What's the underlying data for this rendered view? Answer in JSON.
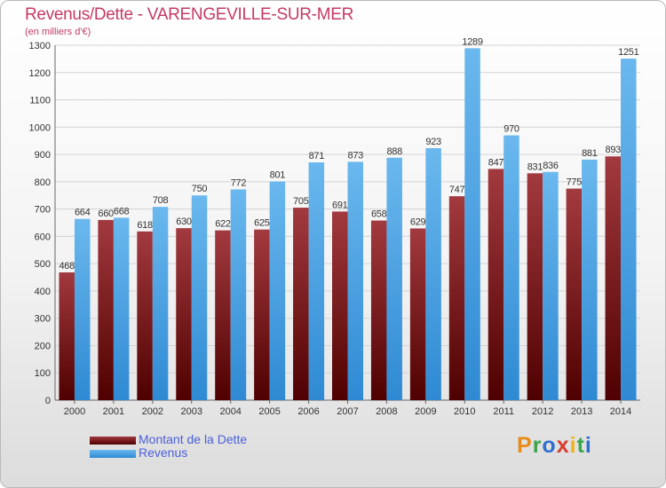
{
  "title": "Revenus/Dette - VARENGEVILLE-SUR-MER",
  "subtitle": "(en milliers d'€)",
  "colors": {
    "title": "#c63b63",
    "dette_light": "#a23a3f",
    "dette_dark": "#4f0000",
    "revenus_light": "#6ab8ee",
    "revenus_dark": "#2f8ad3",
    "legend_text": "#4a5fd9"
  },
  "logo": {
    "letters": [
      {
        "ch": "P",
        "color": "#e88b1a"
      },
      {
        "ch": "r",
        "color": "#3aa64a"
      },
      {
        "ch": "o",
        "color": "#2f6fd1"
      },
      {
        "ch": "x",
        "color": "#d93c2e"
      },
      {
        "ch": "i",
        "color": "#f0b21c"
      },
      {
        "ch": "t",
        "color": "#3aa64a"
      },
      {
        "ch": "i",
        "color": "#2f6fd1"
      }
    ]
  },
  "chart_data": {
    "type": "bar",
    "categories": [
      "2000",
      "2001",
      "2002",
      "2003",
      "2004",
      "2005",
      "2006",
      "2007",
      "2008",
      "2009",
      "2010",
      "2011",
      "2012",
      "2013",
      "2014"
    ],
    "series": [
      {
        "name": "Montant de la Dette",
        "values": [
          468,
          660,
          618,
          630,
          622,
          625,
          705,
          691,
          658,
          629,
          747,
          847,
          831,
          775,
          893
        ]
      },
      {
        "name": "Revenus",
        "values": [
          664,
          668,
          708,
          750,
          772,
          801,
          871,
          873,
          888,
          923,
          1289,
          970,
          836,
          881,
          1251
        ]
      }
    ],
    "ylim": [
      0,
      1300
    ],
    "yticks": [
      0,
      100,
      200,
      300,
      400,
      500,
      600,
      700,
      800,
      900,
      1000,
      1100,
      1200,
      1300
    ],
    "grid": true,
    "legend_position": "bottom-left"
  }
}
